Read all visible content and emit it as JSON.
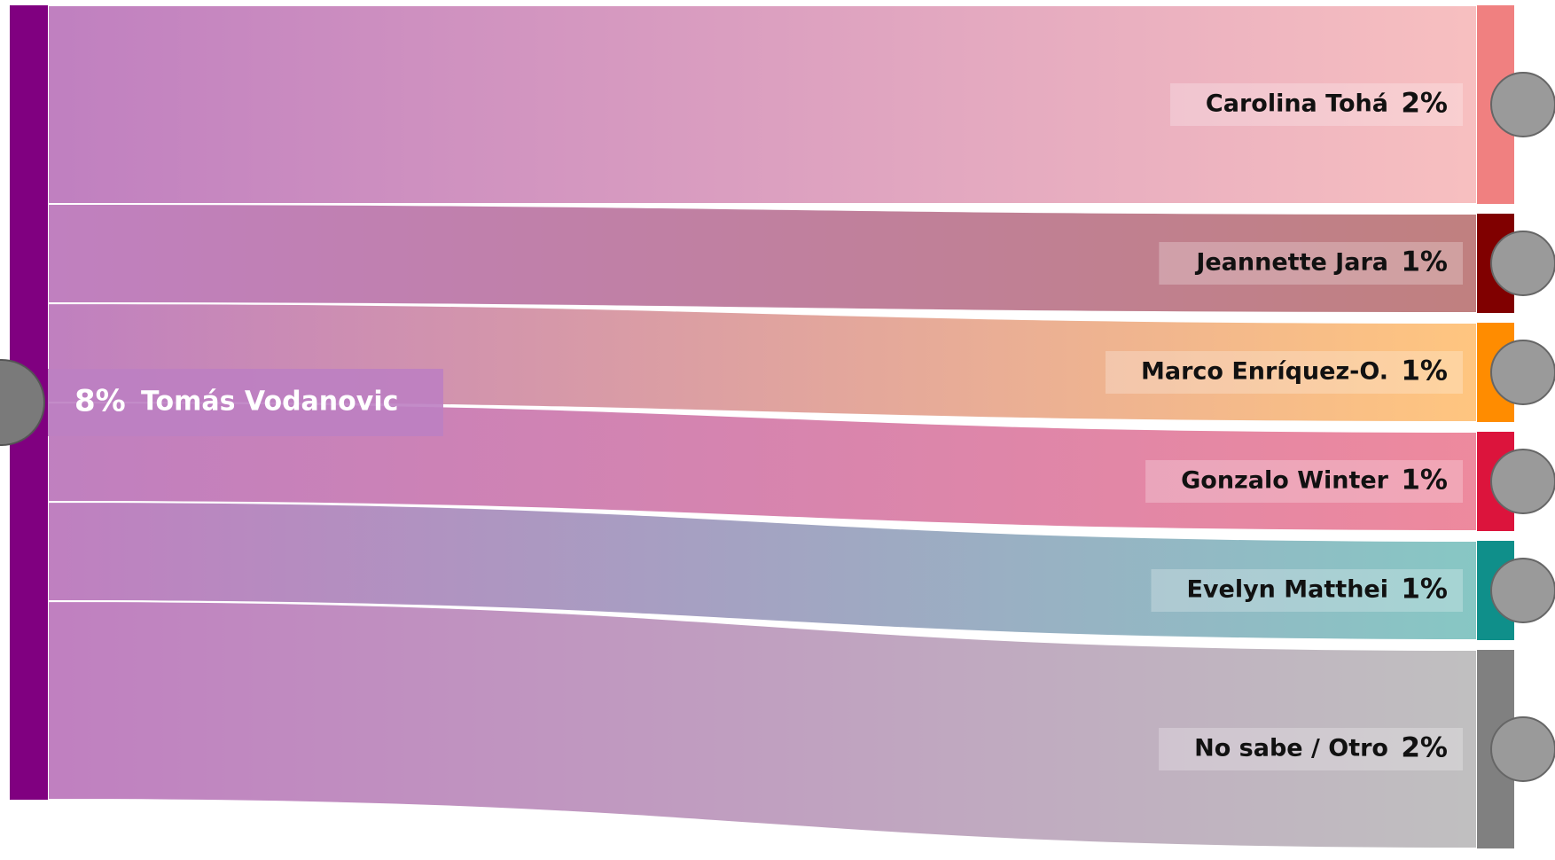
{
  "chart_data": {
    "type": "sankey",
    "source": "Tomás Vodanovic",
    "source_value": 8,
    "source_value_label": "8%",
    "source_color": "#800080",
    "categories": [
      "Carolina Tohá",
      "Jeannette Jara",
      "Marco Enríquez-O.",
      "Gonzalo Winter",
      "Evelyn Matthei",
      "No sabe / Otro"
    ],
    "values": [
      2,
      1,
      1,
      1,
      1,
      2
    ],
    "value_labels": [
      "2%",
      "1%",
      "1%",
      "1%",
      "1%",
      "2%"
    ],
    "colors": [
      "#f08080",
      "#800000",
      "#ff8c00",
      "#dc143c",
      "#0f8f8a",
      "#808080"
    ]
  }
}
